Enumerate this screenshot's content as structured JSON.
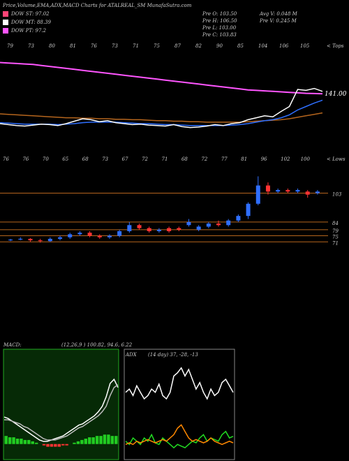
{
  "header": {
    "title": "Price,Volume,EMA,ADX,MACD Charts for ATALREAL_SM MunafaSutra.com",
    "legend": [
      {
        "label": "DOW ST: 97.02",
        "color": "#ff4477"
      },
      {
        "label": "DOW MT: 88.39",
        "color": "#ffffff"
      },
      {
        "label": "DOW PT: 97.2",
        "color": "#ff55ff"
      }
    ],
    "stats": [
      "Pre O: 103.50",
      "Pre H: 106.50",
      "Pre L: 103.00",
      "Pre C: 103.83"
    ],
    "volume_stats": [
      "Avg V: 0.048 M",
      "Pre V: 0.245 M"
    ],
    "tops_label": "< Tops",
    "lows_label": "< Lows",
    "tops": [
      "79",
      "73",
      "80",
      "81",
      "76",
      "73",
      "71",
      "75",
      "87",
      "82",
      "90",
      "85",
      "104",
      "106",
      "105"
    ],
    "lows": [
      "76",
      "76",
      "70",
      "65",
      "68",
      "73",
      "67",
      "72",
      "71",
      "68",
      "72",
      "77",
      "81",
      "96",
      "102",
      "100"
    ]
  },
  "chart_data": [
    {
      "type": "line",
      "ylim": [
        40,
        230
      ],
      "series": [
        {
          "color": "#ff55ff",
          "values": [
            205,
            204,
            203,
            202,
            201,
            199,
            197,
            195,
            193,
            191,
            189,
            187,
            185,
            183,
            181,
            179,
            177,
            175,
            173,
            171,
            169,
            167,
            165,
            163,
            161,
            159,
            157,
            155,
            153,
            151,
            149,
            148,
            147,
            146,
            145,
            144,
            143,
            142,
            141.5,
            141
          ],
          "value_labels": [
            null,
            null,
            null,
            null,
            null,
            null,
            null,
            null,
            null,
            null,
            null,
            null,
            null,
            null,
            null,
            null,
            null,
            null,
            null,
            null,
            null,
            null,
            null,
            null,
            null,
            null,
            null,
            null,
            null,
            null,
            null,
            null,
            null,
            null,
            null,
            null,
            null,
            null,
            null,
            "141.00"
          ]
        },
        {
          "color": "#b5651d",
          "values": [
            100,
            99,
            98,
            97,
            96,
            95,
            94,
            93,
            92,
            92,
            91,
            91,
            90,
            90,
            89,
            89,
            88,
            88,
            87,
            86,
            86,
            85,
            85,
            84,
            84,
            83,
            83,
            83,
            83,
            83,
            84,
            85,
            86,
            87,
            88,
            90,
            93,
            96,
            99,
            102
          ]
        },
        {
          "color": "#2f6fff",
          "values": [
            82,
            81,
            80,
            79,
            79,
            79,
            79,
            78,
            79,
            80,
            82,
            83,
            83,
            83,
            83,
            82,
            81,
            80,
            80,
            79,
            78,
            78,
            77,
            76,
            76,
            76,
            76,
            76,
            77,
            78,
            80,
            83,
            86,
            88,
            92,
            98,
            108,
            115,
            122,
            128
          ]
        },
        {
          "color": "#ffffff",
          "values": [
            80,
            78,
            76,
            75,
            77,
            79,
            78,
            76,
            80,
            85,
            90,
            88,
            84,
            86,
            82,
            80,
            78,
            79,
            77,
            76,
            75,
            78,
            74,
            72,
            73,
            75,
            78,
            76,
            80,
            82,
            88,
            92,
            96,
            94,
            105,
            115,
            150,
            148,
            152,
            146
          ]
        }
      ]
    },
    {
      "type": "candlestick",
      "ylim": [
        67,
        122
      ],
      "up_color": "#2f6fff",
      "down_color": "#ff3333",
      "level_color": "#b5651d",
      "yticks": [
        103,
        84,
        79,
        75,
        71
      ],
      "open": [
        72,
        72.5,
        73,
        72,
        71.5,
        73,
        74,
        76,
        77,
        75,
        74,
        75,
        78,
        82,
        80,
        78,
        80,
        80,
        82,
        79,
        81,
        83,
        82,
        85,
        88,
        96,
        108,
        104,
        105,
        104,
        104,
        103
      ],
      "close": [
        72.5,
        73,
        72,
        71.5,
        73,
        74,
        76,
        77,
        75,
        74,
        75,
        78,
        82,
        80,
        78,
        79,
        78,
        79,
        84,
        81,
        83,
        82,
        85,
        88,
        96,
        108,
        104,
        105,
        104,
        105,
        102,
        104
      ],
      "high": [
        73,
        74,
        73.5,
        73,
        74,
        75,
        77,
        78,
        78,
        76,
        76,
        79,
        84,
        83,
        81,
        80,
        81,
        81,
        86,
        82,
        84,
        85,
        86,
        89,
        97,
        114,
        110,
        106,
        106,
        106,
        105,
        105
      ],
      "low": [
        71.5,
        72,
        71,
        70.5,
        71,
        72,
        73,
        75,
        74,
        73,
        73,
        74,
        77,
        79,
        77,
        77,
        77,
        78,
        81,
        78,
        80,
        81,
        81,
        84,
        86,
        95,
        102,
        103,
        103,
        103,
        100,
        102
      ]
    },
    {
      "type": "macd",
      "title": "MACD:",
      "subtitle": "(12,26,9 ) 100.82, 94.6, 6.22",
      "ylim": [
        -10,
        60
      ],
      "histogram": [
        6,
        5,
        5,
        4,
        4,
        3,
        3,
        2,
        1,
        0,
        -1,
        -2,
        -2,
        -2,
        -2,
        -1,
        -1,
        0,
        1,
        2,
        3,
        4,
        5,
        5,
        6,
        6,
        7,
        7,
        6,
        6
      ],
      "up_color": "#22cc22",
      "down_color": "#ff3333",
      "series": [
        {
          "color": "#ffffff",
          "values": [
            20,
            19,
            17,
            15,
            13,
            11,
            9,
            7,
            5,
            3,
            2,
            2,
            3,
            4,
            5,
            6,
            8,
            10,
            12,
            14,
            15,
            17,
            19,
            21,
            24,
            28,
            35,
            45,
            48,
            42
          ]
        },
        {
          "color": "#bbbbbb",
          "values": [
            18,
            18,
            17,
            16,
            15,
            13,
            12,
            10,
            8,
            6,
            4,
            3,
            3,
            3,
            4,
            5,
            6,
            8,
            10,
            12,
            13,
            15,
            17,
            19,
            21,
            24,
            28,
            36,
            42,
            44
          ]
        }
      ]
    },
    {
      "type": "adx",
      "title": "ADX",
      "subtitle": "(14 day) 37, -28, -13",
      "ylim": [
        0,
        60
      ],
      "series": [
        {
          "color": "#ffffff",
          "values": [
            40,
            42,
            38,
            44,
            40,
            36,
            38,
            42,
            40,
            45,
            38,
            36,
            40,
            50,
            52,
            55,
            50,
            54,
            48,
            42,
            46,
            40,
            36,
            42,
            38,
            40,
            46,
            48,
            44,
            40
          ]
        },
        {
          "color": "#22dd22",
          "values": [
            10,
            8,
            12,
            10,
            8,
            12,
            10,
            14,
            9,
            8,
            12,
            10,
            8,
            6,
            8,
            7,
            6,
            8,
            10,
            9,
            12,
            14,
            10,
            12,
            11,
            10,
            14,
            16,
            12,
            13
          ]
        },
        {
          "color": "#ff8800",
          "values": [
            8,
            9,
            8,
            10,
            9,
            10,
            11,
            10,
            9,
            10,
            11,
            10,
            12,
            14,
            18,
            20,
            16,
            12,
            10,
            11,
            10,
            9,
            10,
            12,
            10,
            9,
            8,
            9,
            10,
            9
          ]
        }
      ]
    }
  ]
}
